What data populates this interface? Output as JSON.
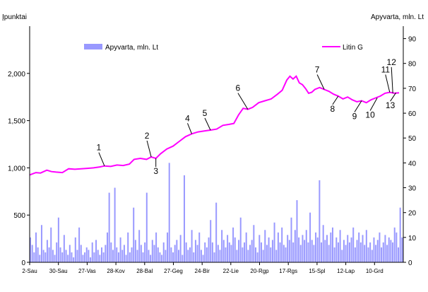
{
  "chart_data": {
    "type": "bar+line",
    "left_axis_label": "Įpunktai",
    "right_axis_label": "Apyvarta, mln. Lt",
    "left_ticks": [
      0,
      500,
      1000,
      1500,
      2000
    ],
    "left_tick_labels": [
      "0",
      "500",
      "1,000",
      "1,500",
      "2,000"
    ],
    "left_ylim": [
      0,
      2500
    ],
    "right_ticks": [
      0,
      10,
      20,
      30,
      40,
      50,
      60,
      70,
      80,
      90
    ],
    "right_tick_labels": [
      "0",
      "10",
      "20",
      "30",
      "40",
      "50",
      "60",
      "70",
      "80",
      "90"
    ],
    "right_ylim": [
      0,
      95
    ],
    "x_tick_labels": [
      "2-Sau",
      "30-Sau",
      "27-Vas",
      "28-Kov",
      "28-Bal",
      "27-Geg",
      "24-Bir",
      "22-Lie",
      "20-Rgp",
      "17-Rgs",
      "15-Spl",
      "12-Lap",
      "10-Grd"
    ],
    "grid": false,
    "legend_placement": "top",
    "series": [
      {
        "name": "Apyvarta, mln. Lt",
        "kind": "bar",
        "axis": "right",
        "color": "#9999ff",
        "values": [
          10,
          7,
          4,
          12,
          6,
          3,
          15,
          5,
          4,
          9,
          6,
          14,
          5,
          3,
          8,
          18,
          6,
          4,
          11,
          5,
          3,
          7,
          4,
          2,
          10,
          5,
          14,
          7,
          3,
          4,
          6,
          5,
          2,
          8,
          4,
          9,
          5,
          3,
          6,
          4,
          7,
          12,
          28,
          8,
          5,
          30,
          6,
          4,
          10,
          5,
          7,
          3,
          12,
          4,
          6,
          22,
          9,
          5,
          13,
          7,
          4,
          8,
          28,
          5,
          3,
          9,
          7,
          12,
          6,
          4,
          3,
          8,
          5,
          12,
          40,
          6,
          4,
          7,
          9,
          5,
          11,
          3,
          35,
          8,
          5,
          6,
          13,
          4,
          9,
          7,
          12,
          5,
          3,
          8,
          6,
          10,
          17,
          8,
          4,
          24,
          7,
          5,
          13,
          9,
          6,
          11,
          8,
          7,
          14,
          10,
          5,
          9,
          18,
          6,
          8,
          12,
          5,
          7,
          9,
          15,
          6,
          4,
          11,
          8,
          5,
          13,
          7,
          10,
          6,
          9,
          16,
          5,
          12,
          8,
          14,
          7,
          6,
          11,
          9,
          18,
          8,
          13,
          25,
          10,
          7,
          11,
          9,
          13,
          8,
          20,
          9,
          7,
          12,
          10,
          33,
          8,
          15,
          9,
          11,
          7,
          12,
          14,
          6,
          10,
          8,
          13,
          5,
          9,
          7,
          11,
          8,
          10,
          14,
          6,
          9,
          12,
          8,
          11,
          7,
          13,
          6,
          8,
          5,
          10,
          7,
          9,
          12,
          6,
          8,
          11,
          7,
          10,
          9,
          8,
          14,
          12,
          6,
          22,
          10
        ]
      },
      {
        "name": "Litin G",
        "kind": "line",
        "axis": "left",
        "color": "#ff00ff",
        "points": [
          [
            0,
            925
          ],
          [
            8,
            950
          ],
          [
            14,
            945
          ],
          [
            22,
            975
          ],
          [
            28,
            960
          ],
          [
            34,
            955
          ],
          [
            42,
            950
          ],
          [
            50,
            990
          ],
          [
            58,
            985
          ],
          [
            66,
            990
          ],
          [
            74,
            995
          ],
          [
            82,
            1000
          ],
          [
            90,
            1010
          ],
          [
            96,
            1020
          ],
          [
            104,
            1015
          ],
          [
            112,
            1030
          ],
          [
            120,
            1025
          ],
          [
            128,
            1040
          ],
          [
            134,
            1090
          ],
          [
            142,
            1100
          ],
          [
            150,
            1090
          ],
          [
            156,
            1115
          ],
          [
            162,
            1100
          ],
          [
            168,
            1150
          ],
          [
            176,
            1200
          ],
          [
            184,
            1230
          ],
          [
            192,
            1280
          ],
          [
            200,
            1330
          ],
          [
            208,
            1360
          ],
          [
            216,
            1380
          ],
          [
            224,
            1390
          ],
          [
            232,
            1400
          ],
          [
            240,
            1410
          ],
          [
            248,
            1450
          ],
          [
            256,
            1460
          ],
          [
            262,
            1470
          ],
          [
            268,
            1560
          ],
          [
            274,
            1630
          ],
          [
            280,
            1620
          ],
          [
            286,
            1640
          ],
          [
            294,
            1690
          ],
          [
            302,
            1710
          ],
          [
            310,
            1730
          ],
          [
            318,
            1780
          ],
          [
            324,
            1820
          ],
          [
            330,
            1930
          ],
          [
            334,
            1970
          ],
          [
            338,
            1940
          ],
          [
            342,
            1970
          ],
          [
            346,
            1900
          ],
          [
            350,
            1880
          ],
          [
            354,
            1840
          ],
          [
            358,
            1790
          ],
          [
            362,
            1800
          ],
          [
            366,
            1830
          ],
          [
            372,
            1850
          ],
          [
            378,
            1830
          ],
          [
            384,
            1810
          ],
          [
            390,
            1780
          ],
          [
            396,
            1760
          ],
          [
            402,
            1730
          ],
          [
            408,
            1750
          ],
          [
            414,
            1720
          ],
          [
            420,
            1700
          ],
          [
            426,
            1710
          ],
          [
            432,
            1690
          ],
          [
            438,
            1720
          ],
          [
            444,
            1740
          ],
          [
            450,
            1760
          ],
          [
            456,
            1790
          ],
          [
            462,
            1800
          ],
          [
            468,
            1790
          ],
          [
            474,
            1795
          ]
        ]
      }
    ],
    "annotations": [
      {
        "text": "1",
        "x": 96,
        "y": 1020
      },
      {
        "text": "2",
        "x": 156,
        "y": 1115
      },
      {
        "text": "3",
        "x": 162,
        "y": 1100
      },
      {
        "text": "4",
        "x": 208,
        "y": 1360
      },
      {
        "text": "5",
        "x": 232,
        "y": 1400
      },
      {
        "text": "6",
        "x": 280,
        "y": 1620
      },
      {
        "text": "7",
        "x": 378,
        "y": 1830
      },
      {
        "text": "8",
        "x": 396,
        "y": 1760
      },
      {
        "text": "9",
        "x": 426,
        "y": 1710
      },
      {
        "text": "10",
        "x": 446,
        "y": 1740
      },
      {
        "text": "11",
        "x": 462,
        "y": 1800
      },
      {
        "text": "12",
        "x": 466,
        "y": 1790
      },
      {
        "text": "13",
        "x": 470,
        "y": 1795
      }
    ]
  }
}
